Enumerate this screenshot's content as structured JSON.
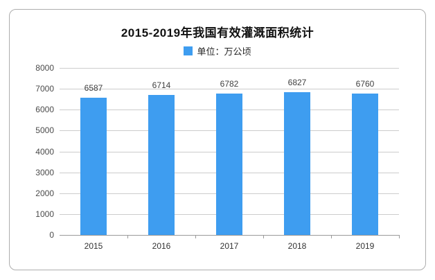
{
  "chart_data": {
    "type": "bar",
    "title": "2015-2019年我国有效灌溉面积统计",
    "legend_label": "单位：万公顷",
    "categories": [
      "2015",
      "2016",
      "2017",
      "2018",
      "2019"
    ],
    "values": [
      6587,
      6714,
      6782,
      6827,
      6760
    ],
    "xlabel": "",
    "ylabel": "",
    "ylim": [
      0,
      8000
    ],
    "ytick_step": 1000,
    "grid": true,
    "legend_position": "top"
  },
  "colors": {
    "bar": "#3E9DF0",
    "grid_line": "#cccccc",
    "axis_line": "#999999",
    "card_border": "#adadad",
    "text": "#333333"
  }
}
